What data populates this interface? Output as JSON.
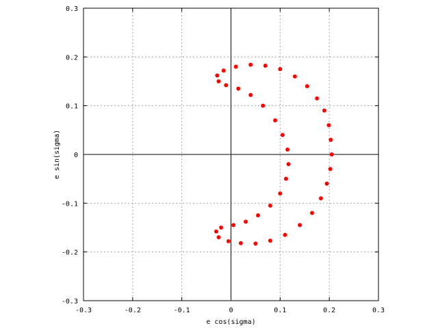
{
  "chart_data": {
    "type": "scatter",
    "title": "",
    "xlabel": "e cos(sigma)",
    "ylabel": "e sin(sigma)",
    "xlim": [
      -0.3,
      0.3
    ],
    "ylim": [
      -0.3,
      0.3
    ],
    "xticks": [
      "-0.3",
      "-0.2",
      "-0.1",
      "0",
      "0.1",
      "0.2",
      "0.3"
    ],
    "yticks": [
      "-0.3",
      "-0.2",
      "-0.1",
      "0",
      "0.1",
      "0.2",
      "0.3"
    ],
    "grid": true,
    "zero_axes": true,
    "color": "#ff0000",
    "series": [
      {
        "values": [
          [
            0.205,
            0.0
          ],
          [
            0.203,
            0.03
          ],
          [
            0.199,
            0.06
          ],
          [
            0.19,
            0.09
          ],
          [
            0.175,
            0.115
          ],
          [
            0.155,
            0.14
          ],
          [
            0.13,
            0.16
          ],
          [
            0.1,
            0.175
          ],
          [
            0.07,
            0.182
          ],
          [
            0.04,
            0.184
          ],
          [
            0.01,
            0.18
          ],
          [
            -0.015,
            0.172
          ],
          [
            -0.028,
            0.162
          ],
          [
            -0.025,
            0.15
          ],
          [
            -0.01,
            0.142
          ],
          [
            0.015,
            0.135
          ],
          [
            0.04,
            0.122
          ],
          [
            0.065,
            0.1
          ],
          [
            0.09,
            0.07
          ],
          [
            0.105,
            0.04
          ],
          [
            0.115,
            0.01
          ],
          [
            0.117,
            -0.02
          ],
          [
            0.112,
            -0.05
          ],
          [
            0.1,
            -0.08
          ],
          [
            0.08,
            -0.105
          ],
          [
            0.055,
            -0.125
          ],
          [
            0.03,
            -0.138
          ],
          [
            0.005,
            -0.145
          ],
          [
            -0.02,
            -0.15
          ],
          [
            -0.03,
            -0.158
          ],
          [
            -0.025,
            -0.17
          ],
          [
            -0.005,
            -0.178
          ],
          [
            0.02,
            -0.182
          ],
          [
            0.05,
            -0.183
          ],
          [
            0.08,
            -0.177
          ],
          [
            0.11,
            -0.165
          ],
          [
            0.14,
            -0.145
          ],
          [
            0.165,
            -0.12
          ],
          [
            0.183,
            -0.09
          ],
          [
            0.195,
            -0.06
          ],
          [
            0.202,
            -0.03
          ]
        ]
      }
    ]
  }
}
